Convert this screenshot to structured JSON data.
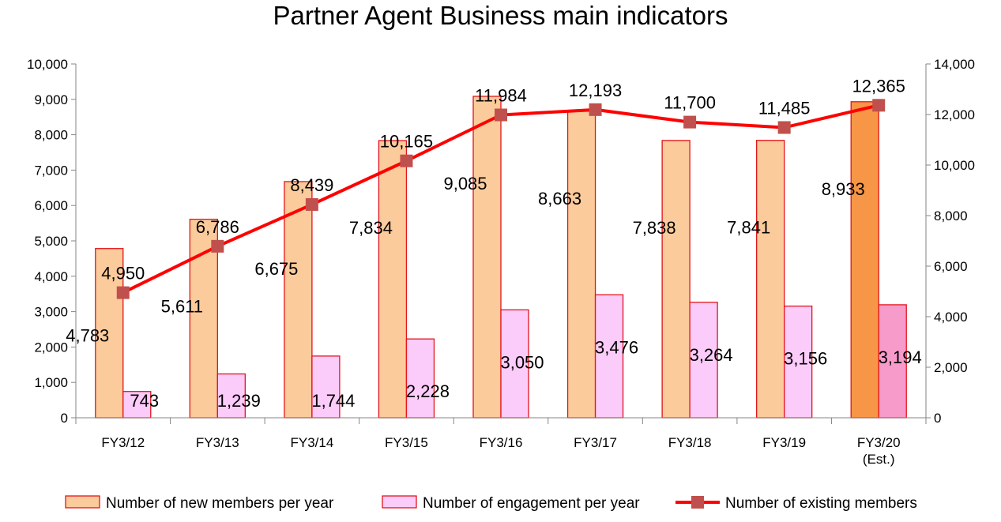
{
  "chart_data": {
    "type": "bar",
    "title": "Partner Agent Business main indicators",
    "categories": [
      [
        "FY3/12"
      ],
      [
        "FY3/13"
      ],
      [
        "FY3/14"
      ],
      [
        "FY3/15"
      ],
      [
        "FY3/16"
      ],
      [
        "FY3/17"
      ],
      [
        "FY3/18"
      ],
      [
        "FY3/19"
      ],
      [
        "FY3/20",
        "(Est.)"
      ]
    ],
    "y_left": {
      "min": 0,
      "max": 10000,
      "step": 1000
    },
    "y_right": {
      "min": 0,
      "max": 14000,
      "step": 2000
    },
    "grid": false,
    "legend_position": "bottom",
    "series": [
      {
        "name": "Number of new members per year",
        "kind": "bar",
        "axis": "left",
        "values": [
          4783,
          5611,
          6675,
          7834,
          9085,
          8663,
          7838,
          7841,
          8933
        ],
        "labels": [
          "4,783",
          "5,611",
          "6,675",
          "7,834",
          "9,085",
          "8,663",
          "7,838",
          "7,841",
          "8,933"
        ],
        "color": "#FBCB9B",
        "highlight_color": "#F79646",
        "edge_color": "#E3141B"
      },
      {
        "name": "Number of engagement per year",
        "kind": "bar",
        "axis": "left",
        "values": [
          743,
          1239,
          1744,
          2228,
          3050,
          3476,
          3264,
          3156,
          3194
        ],
        "labels": [
          "743",
          "1,239",
          "1,744",
          "2,228",
          "3,050",
          "3,476",
          "3,264",
          "3,156",
          "3,194"
        ],
        "color": "#FBCBF9",
        "highlight_color": "#F79BCB",
        "edge_color": "#E3141B"
      },
      {
        "name": "Number of existing members",
        "kind": "line",
        "axis": "right",
        "values": [
          4950,
          6786,
          8439,
          10165,
          11984,
          12193,
          11700,
          11485,
          12365
        ],
        "labels": [
          "4,950",
          "6,786",
          "8,439",
          "10,165",
          "11,984",
          "12,193",
          "11,700",
          "11,485",
          "12,365"
        ],
        "color": "#FF0000",
        "marker_color": "#C0504D"
      }
    ],
    "highlight_index": 8
  }
}
